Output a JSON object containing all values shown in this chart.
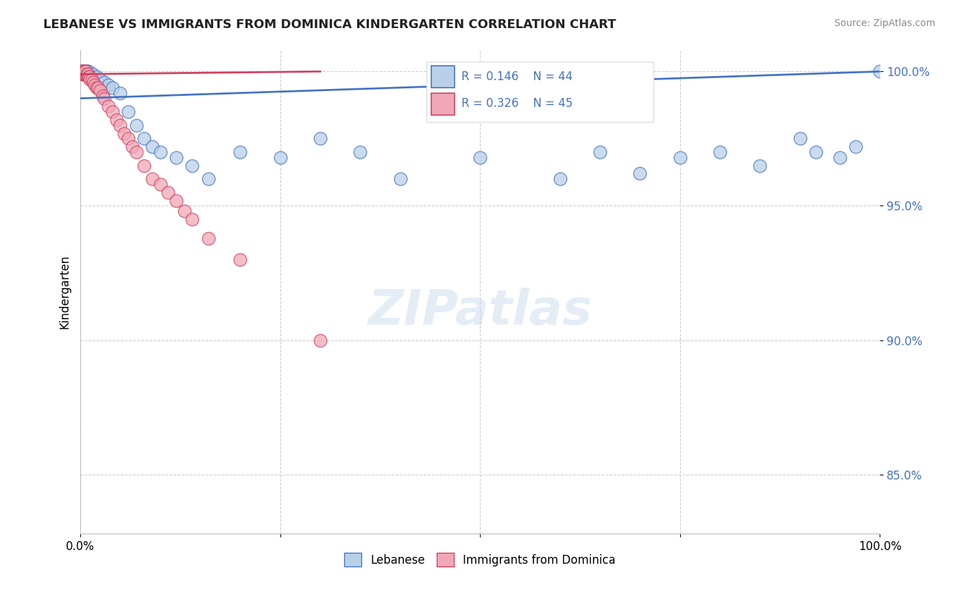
{
  "title": "LEBANESE VS IMMIGRANTS FROM DOMINICA KINDERGARTEN CORRELATION CHART",
  "source": "Source: ZipAtlas.com",
  "ylabel": "Kindergarten",
  "xlim": [
    0.0,
    1.0
  ],
  "ylim": [
    0.828,
    1.008
  ],
  "yticks": [
    0.85,
    0.9,
    0.95,
    1.0
  ],
  "ytick_labels": [
    "85.0%",
    "90.0%",
    "95.0%",
    "100.0%"
  ],
  "xtick_labels": [
    "0.0%",
    "100.0%"
  ],
  "xtick_pos": [
    0.0,
    1.0
  ],
  "legend_R_blue": "R = 0.146",
  "legend_N_blue": "N = 44",
  "legend_R_pink": "R = 0.326",
  "legend_N_pink": "N = 45",
  "blue_color": "#b8d0e8",
  "pink_color": "#f0a8b8",
  "trend_blue": "#4472c4",
  "trend_pink": "#d04060",
  "blue_scatter_x": [
    0.001,
    0.002,
    0.003,
    0.004,
    0.005,
    0.006,
    0.007,
    0.008,
    0.009,
    0.01,
    0.012,
    0.015,
    0.018,
    0.02,
    0.025,
    0.03,
    0.035,
    0.04,
    0.05,
    0.06,
    0.07,
    0.08,
    0.09,
    0.1,
    0.12,
    0.14,
    0.16,
    0.2,
    0.25,
    0.3,
    0.35,
    0.4,
    0.5,
    0.6,
    0.65,
    0.7,
    0.75,
    0.8,
    0.85,
    0.9,
    0.92,
    0.95,
    0.97,
    1.0
  ],
  "blue_scatter_y": [
    1.0,
    1.0,
    1.0,
    1.0,
    1.0,
    1.0,
    1.0,
    1.0,
    1.0,
    1.0,
    0.998,
    0.999,
    0.997,
    0.998,
    0.997,
    0.996,
    0.995,
    0.994,
    0.992,
    0.985,
    0.98,
    0.975,
    0.972,
    0.97,
    0.968,
    0.965,
    0.96,
    0.97,
    0.968,
    0.975,
    0.97,
    0.96,
    0.968,
    0.96,
    0.97,
    0.962,
    0.968,
    0.97,
    0.965,
    0.975,
    0.97,
    0.968,
    0.972,
    1.0
  ],
  "pink_scatter_x": [
    0.001,
    0.001,
    0.002,
    0.002,
    0.003,
    0.003,
    0.004,
    0.004,
    0.005,
    0.005,
    0.006,
    0.006,
    0.007,
    0.007,
    0.008,
    0.009,
    0.01,
    0.011,
    0.012,
    0.014,
    0.016,
    0.018,
    0.02,
    0.022,
    0.025,
    0.028,
    0.03,
    0.035,
    0.04,
    0.045,
    0.05,
    0.055,
    0.06,
    0.065,
    0.07,
    0.08,
    0.09,
    0.1,
    0.11,
    0.12,
    0.13,
    0.14,
    0.16,
    0.2,
    0.3
  ],
  "pink_scatter_y": [
    0.999,
    1.0,
    0.999,
    1.0,
    0.999,
    1.0,
    0.999,
    1.0,
    0.999,
    1.0,
    0.999,
    1.0,
    0.999,
    1.0,
    0.999,
    0.999,
    0.998,
    0.998,
    0.997,
    0.997,
    0.996,
    0.995,
    0.994,
    0.994,
    0.993,
    0.991,
    0.99,
    0.987,
    0.985,
    0.982,
    0.98,
    0.977,
    0.975,
    0.972,
    0.97,
    0.965,
    0.96,
    0.958,
    0.955,
    0.952,
    0.948,
    0.945,
    0.938,
    0.93,
    0.9
  ]
}
